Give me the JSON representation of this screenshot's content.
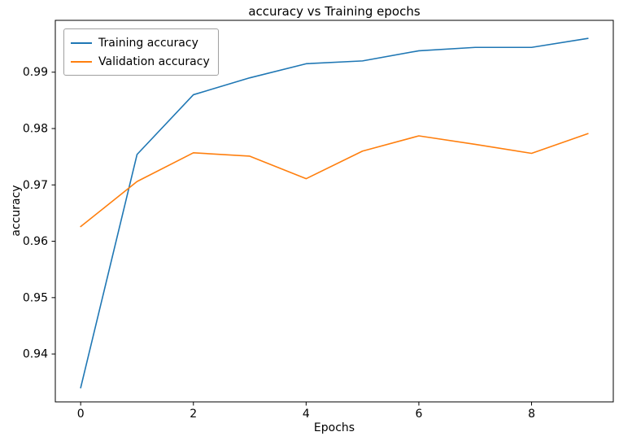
{
  "chart_data": {
    "type": "line",
    "title": "accuracy vs Training epochs",
    "xlabel": "Epochs",
    "ylabel": "accuracy",
    "x": [
      0,
      1,
      2,
      3,
      4,
      5,
      6,
      7,
      8,
      9
    ],
    "series": [
      {
        "name": "Training accuracy",
        "color": "#1f77b4",
        "values": [
          0.934,
          0.9754,
          0.986,
          0.989,
          0.9915,
          0.992,
          0.9938,
          0.9944,
          0.9944,
          0.996
        ]
      },
      {
        "name": "Validation accuracy",
        "color": "#ff7f0e",
        "values": [
          0.9626,
          0.9706,
          0.9757,
          0.9751,
          0.9711,
          0.976,
          0.9787,
          0.9772,
          0.9756,
          0.9791
        ]
      }
    ],
    "xlim": [
      -0.45,
      9.45
    ],
    "ylim": [
      0.9315,
      0.9992
    ],
    "xtick_values": [
      0,
      2,
      4,
      6,
      8
    ],
    "xtick_labels": [
      "0",
      "2",
      "4",
      "6",
      "8"
    ],
    "ytick_values": [
      0.94,
      0.95,
      0.96,
      0.97,
      0.98,
      0.99
    ],
    "ytick_labels": [
      "0.94",
      "0.95",
      "0.96",
      "0.97",
      "0.98",
      "0.99"
    ],
    "grid": false,
    "legend_position": "upper left",
    "line_width": 1.6,
    "axis_color": "#000000"
  }
}
